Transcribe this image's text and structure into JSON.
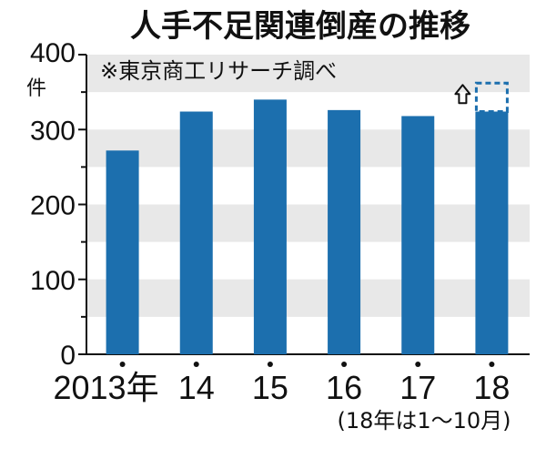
{
  "colors": {
    "bar": "#1c6fae",
    "band": "#e8e8e8",
    "axis": "#111111"
  },
  "chart_data": {
    "type": "bar",
    "title": "人手不足関連倒産の推移",
    "source_note": "※東京商工リサーチ調べ",
    "ylabel_unit": "件",
    "ylim": [
      0,
      400
    ],
    "yticks": [
      "0",
      "100",
      "200",
      "300",
      "400"
    ],
    "categories": [
      "2013年",
      "14",
      "15",
      "16",
      "17",
      "18"
    ],
    "values": [
      272,
      324,
      340,
      326,
      318,
      324
    ],
    "projection": {
      "category": "18",
      "value": 362,
      "style": "dashed outline with upward arrow"
    },
    "footnote": "(18年は1〜10月)"
  }
}
